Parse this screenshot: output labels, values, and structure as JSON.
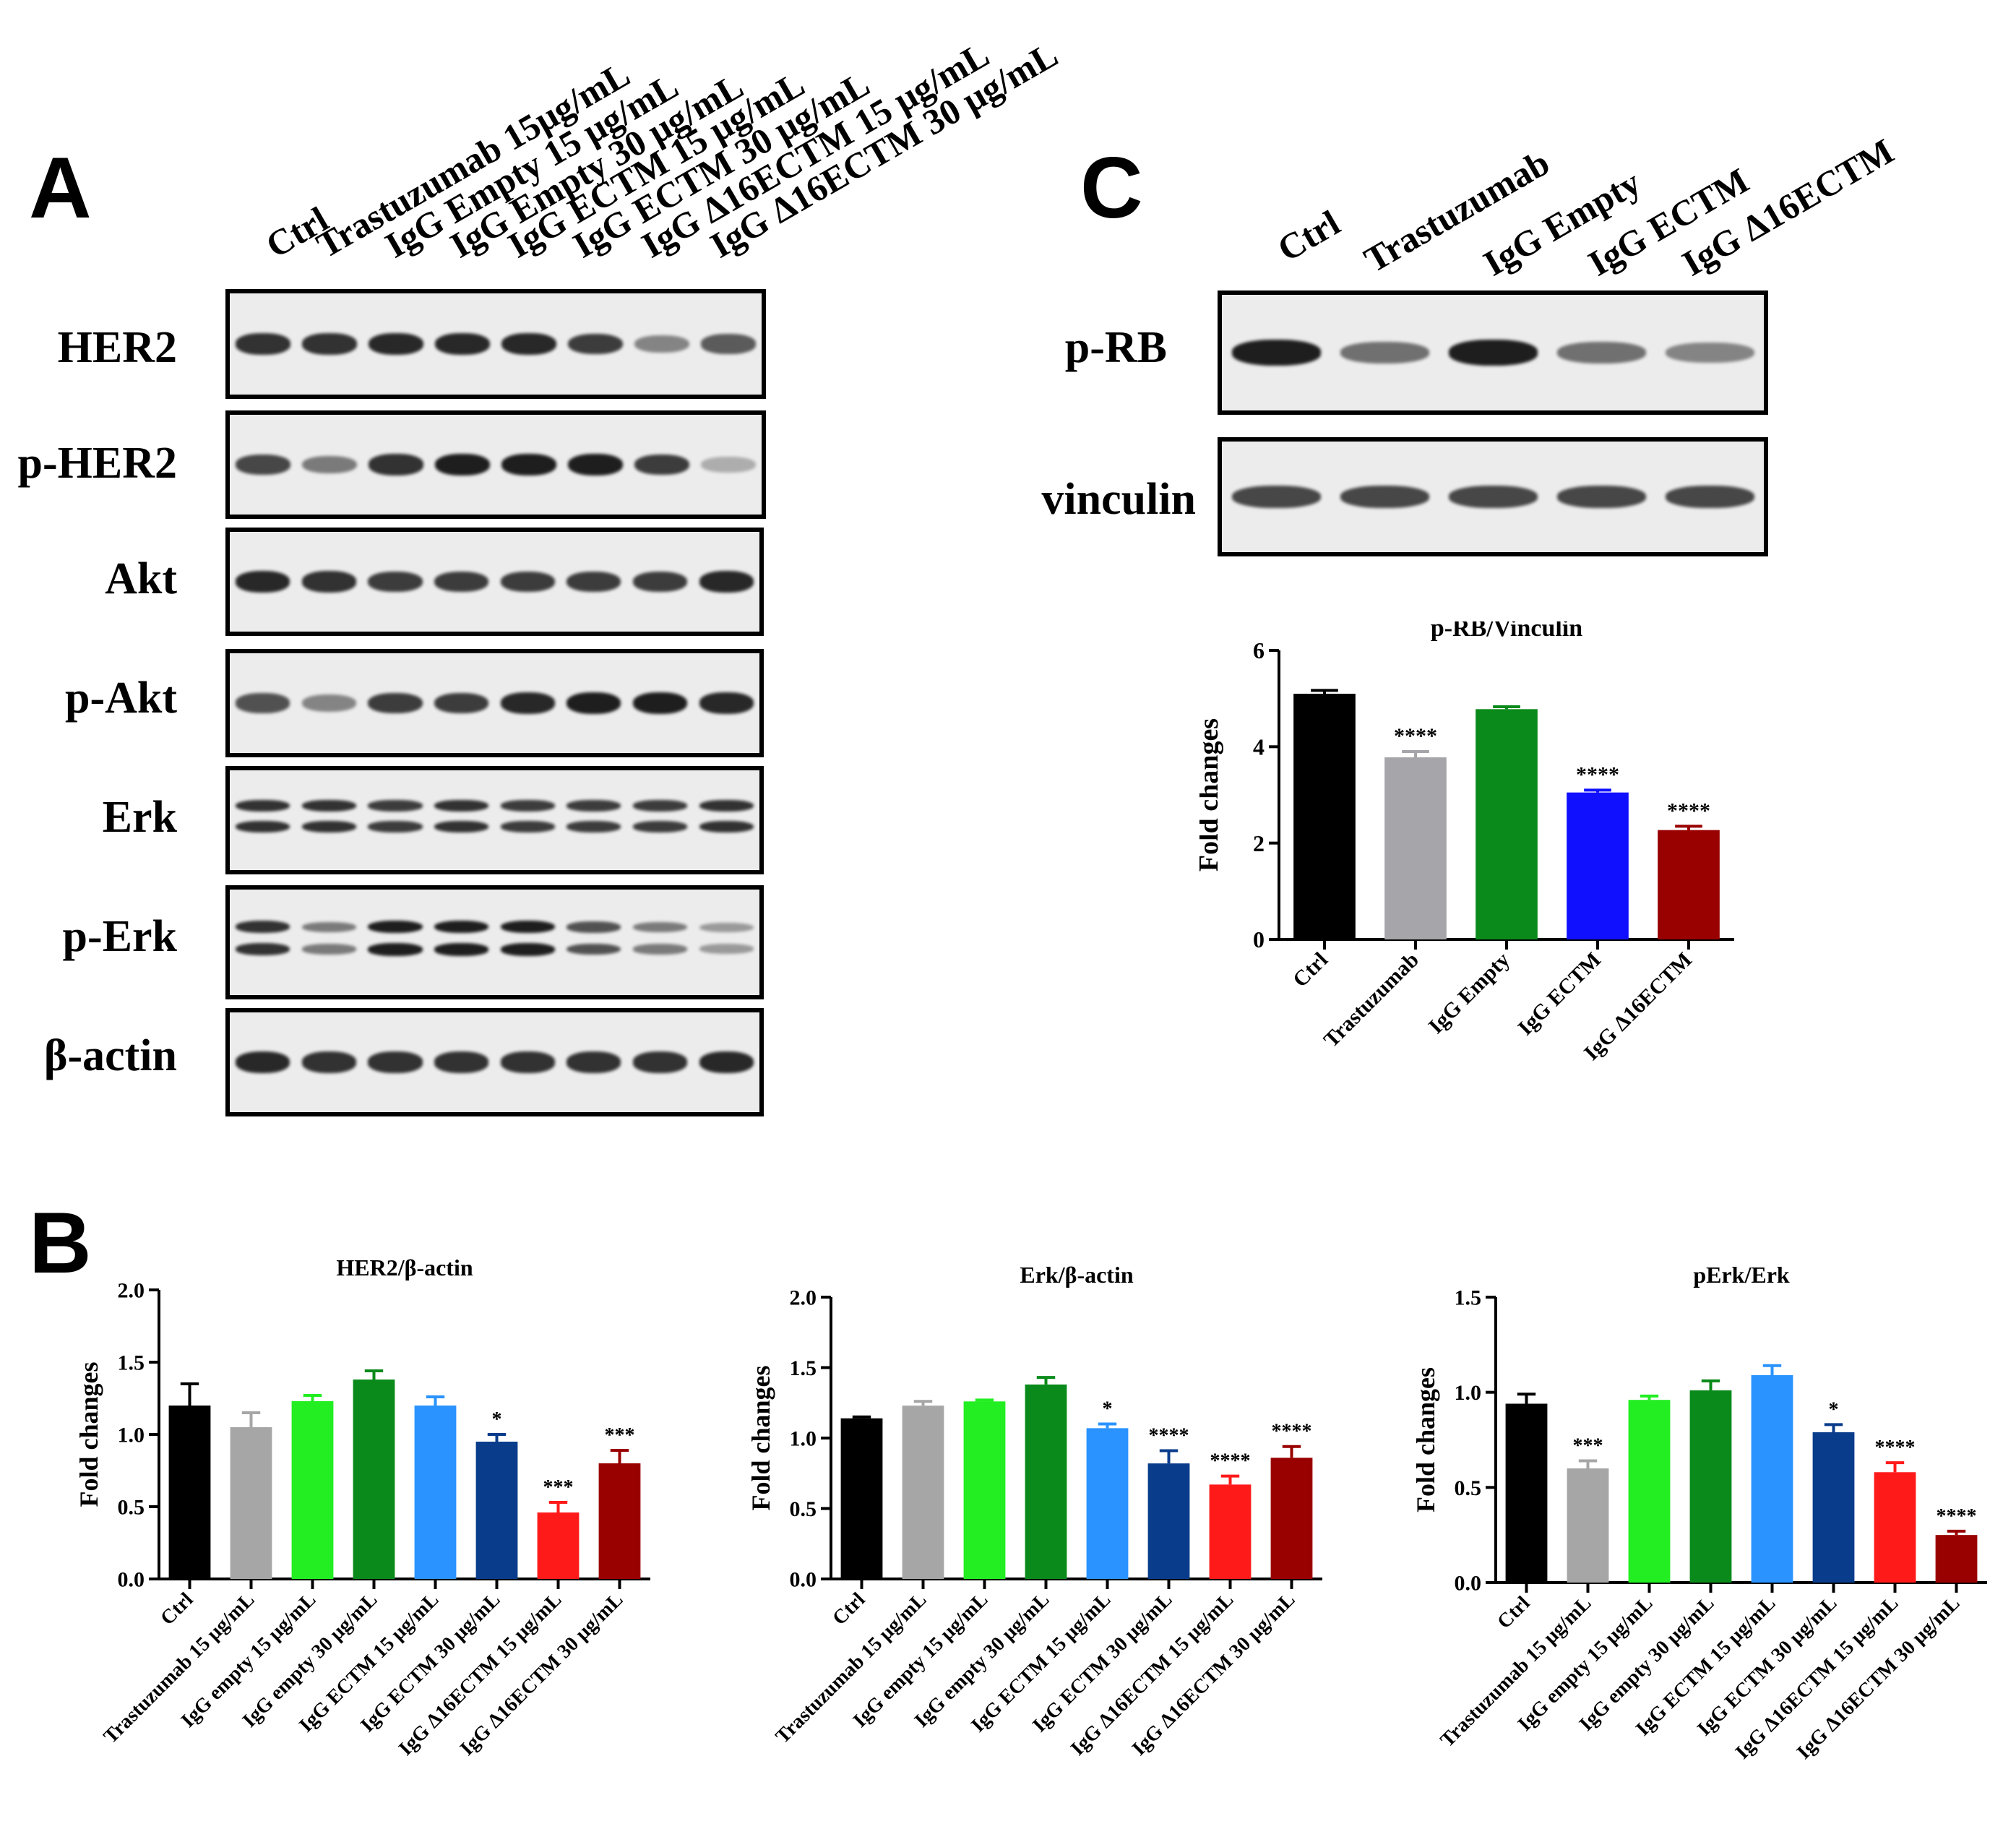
{
  "panels": {
    "a": {
      "letter": "A",
      "lanes": [
        "Ctrl",
        "Trastuzumab 15μg/mL",
        "IgG Empty 15 μg/mL",
        "IgG Empty 30 μg/mL",
        "IgG ECTM 15 μg/mL",
        "IgG ECTM 30 μg/mL",
        "IgG Δ16ECTM 15 μg/mL",
        "IgG Δ16ECTM 30 μg/mL"
      ],
      "blots": [
        {
          "label": "HER2",
          "intensity": [
            0.9,
            0.9,
            0.95,
            0.95,
            0.95,
            0.85,
            0.5,
            0.7
          ],
          "double": false
        },
        {
          "label": "p-HER2",
          "intensity": [
            0.8,
            0.55,
            0.9,
            1.0,
            1.0,
            1.0,
            0.85,
            0.3
          ],
          "double": false
        },
        {
          "label": "Akt",
          "intensity": [
            0.95,
            0.9,
            0.85,
            0.85,
            0.85,
            0.85,
            0.85,
            0.95
          ],
          "double": false
        },
        {
          "label": "p-Akt",
          "intensity": [
            0.75,
            0.5,
            0.85,
            0.85,
            0.95,
            1.0,
            1.0,
            0.95
          ],
          "double": false
        },
        {
          "label": "Erk",
          "intensity": [
            0.9,
            0.9,
            0.85,
            0.9,
            0.85,
            0.85,
            0.85,
            0.9
          ],
          "double": true
        },
        {
          "label": "p-Erk",
          "intensity": [
            0.9,
            0.55,
            1.0,
            1.0,
            1.0,
            0.75,
            0.55,
            0.4
          ],
          "double": true
        },
        {
          "label": "β-actin",
          "intensity": [
            0.95,
            0.9,
            0.9,
            0.9,
            0.9,
            0.9,
            0.9,
            0.95
          ],
          "double": false
        }
      ]
    },
    "c": {
      "letter": "C",
      "lanes": [
        "Ctrl",
        "Trastuzumab",
        "IgG Empty",
        "IgG ECTM",
        "IgG Δ16ECTM"
      ],
      "blots": [
        {
          "label": "p-RB",
          "intensity": [
            1.0,
            0.6,
            1.0,
            0.6,
            0.5
          ],
          "double": false
        },
        {
          "label": "vinculin",
          "intensity": [
            0.8,
            0.8,
            0.8,
            0.8,
            0.8
          ],
          "double": false
        }
      ]
    },
    "b": {
      "letter": "B"
    }
  },
  "chart_data": [
    {
      "type": "bar",
      "title": "p-RB/Vinculin",
      "ylabel": "Fold changes",
      "ylim": [
        0,
        6
      ],
      "yticks": [
        "0",
        "2",
        "4",
        "6"
      ],
      "categories": [
        "Ctrl",
        "Trastuzumab",
        "IgG Empty",
        "IgG ECTM",
        "IgG Δ16ECTM"
      ],
      "values": [
        5.1,
        3.78,
        4.78,
        3.05,
        2.27
      ],
      "errors": [
        0.07,
        0.12,
        0.05,
        0.05,
        0.08
      ],
      "significance": [
        "",
        "****",
        "",
        "****",
        "****"
      ],
      "colors": [
        "#000000",
        "#a6a6aa",
        "#0a8a1a",
        "#1010ff",
        "#990000"
      ]
    },
    {
      "type": "bar",
      "title": "HER2/β-actin",
      "ylabel": "Fold changes",
      "ylim": [
        0,
        2
      ],
      "yticks": [
        "0.0",
        "0.5",
        "1.0",
        "1.5",
        "2.0"
      ],
      "categories": [
        "Ctrl",
        "Trastuzumab 15 μg/mL",
        "IgG empty 15 μg/mL",
        "IgG empty 30 μg/mL",
        "IgG ECTM 15 μg/mL",
        "IgG ECTM 30 μg/mL",
        "IgG Δ16ECTM 15 μg/mL",
        "IgG Δ16ECTM 30 μg/mL"
      ],
      "values": [
        1.2,
        1.05,
        1.23,
        1.38,
        1.2,
        0.95,
        0.46,
        0.8
      ],
      "errors": [
        0.15,
        0.1,
        0.04,
        0.06,
        0.06,
        0.05,
        0.07,
        0.09
      ],
      "significance": [
        "",
        "",
        "",
        "",
        "",
        "*",
        "***",
        "***"
      ],
      "colors": [
        "#000000",
        "#a6a6a6",
        "#22ee22",
        "#0a8a1a",
        "#2a93ff",
        "#0a3c8c",
        "#ff1a1a",
        "#990000"
      ]
    },
    {
      "type": "bar",
      "title": "Erk/β-actin",
      "ylabel": "Fold changes",
      "ylim": [
        0,
        2
      ],
      "yticks": [
        "0.0",
        "0.5",
        "1.0",
        "1.5",
        "2.0"
      ],
      "categories": [
        "Ctrl",
        "Trastuzumab 15 μg/mL",
        "IgG empty 15 μg/mL",
        "IgG empty 30 μg/mL",
        "IgG ECTM 15 μg/mL",
        "IgG ECTM 30 μg/mL",
        "IgG Δ16ECTM 15 μg/mL",
        "IgG Δ16ECTM 30 μg/mL"
      ],
      "values": [
        1.14,
        1.23,
        1.26,
        1.38,
        1.07,
        0.82,
        0.67,
        0.86
      ],
      "errors": [
        0.01,
        0.03,
        0.01,
        0.05,
        0.03,
        0.09,
        0.06,
        0.08
      ],
      "significance": [
        "",
        "",
        "",
        "",
        "*",
        "****",
        "****",
        "****"
      ],
      "colors": [
        "#000000",
        "#a6a6a6",
        "#22ee22",
        "#0a8a1a",
        "#2a93ff",
        "#0a3c8c",
        "#ff1a1a",
        "#990000"
      ]
    },
    {
      "type": "bar",
      "title": "pErk/Erk",
      "ylabel": "Fold changes",
      "ylim": [
        0,
        1.5
      ],
      "yticks": [
        "0.0",
        "0.5",
        "1.0",
        "1.5"
      ],
      "categories": [
        "Ctrl",
        "Trastuzumab 15 μg/mL",
        "IgG empty 15 μg/mL",
        "IgG empty 30 μg/mL",
        "IgG ECTM 15 μg/mL",
        "IgG ECTM 30 μg/mL",
        "IgG Δ16ECTM 15 μg/mL",
        "IgG Δ16ECTM 30 μg/mL"
      ],
      "values": [
        0.94,
        0.6,
        0.96,
        1.01,
        1.09,
        0.79,
        0.58,
        0.25
      ],
      "errors": [
        0.05,
        0.04,
        0.02,
        0.05,
        0.05,
        0.04,
        0.05,
        0.02
      ],
      "significance": [
        "",
        "***",
        "",
        "",
        "",
        "*",
        "****",
        "****"
      ],
      "colors": [
        "#000000",
        "#a6a6a6",
        "#22ee22",
        "#0a8a1a",
        "#2a93ff",
        "#0a3c8c",
        "#ff1a1a",
        "#990000"
      ]
    }
  ]
}
